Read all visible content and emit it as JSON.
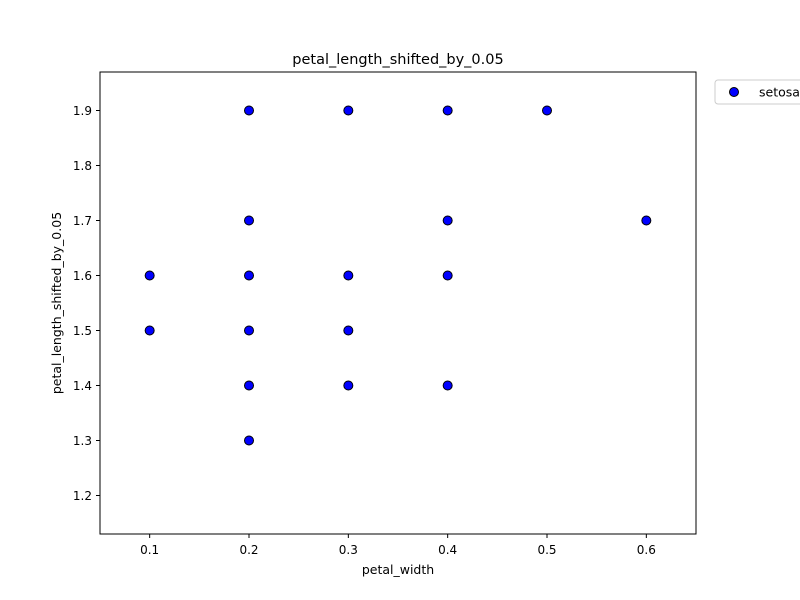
{
  "chart_data": {
    "type": "scatter",
    "title": "petal_length_shifted_by_0.05",
    "xlabel": "petal_width",
    "ylabel": "petal_length_shifted_by_0.05",
    "xlim": [
      0.05,
      0.65
    ],
    "ylim": [
      1.13,
      1.97
    ],
    "xticks": [
      0.1,
      0.2,
      0.3,
      0.4,
      0.5,
      0.6
    ],
    "yticks": [
      1.2,
      1.3,
      1.4,
      1.5,
      1.6,
      1.7,
      1.8,
      1.9
    ],
    "xtick_labels": [
      "0.1",
      "0.2",
      "0.3",
      "0.4",
      "0.5",
      "0.6"
    ],
    "ytick_labels": [
      "1.2",
      "1.3",
      "1.4",
      "1.5",
      "1.6",
      "1.7",
      "1.8",
      "1.9"
    ],
    "grid": false,
    "legend_position": "outside-top-right",
    "series": [
      {
        "name": "setosa",
        "color": "#0000ff",
        "edge_color": "#000000",
        "points": [
          [
            0.1,
            1.5
          ],
          [
            0.1,
            1.6
          ],
          [
            0.2,
            1.3
          ],
          [
            0.2,
            1.4
          ],
          [
            0.2,
            1.5
          ],
          [
            0.2,
            1.6
          ],
          [
            0.2,
            1.7
          ],
          [
            0.2,
            1.9
          ],
          [
            0.3,
            1.4
          ],
          [
            0.3,
            1.5
          ],
          [
            0.3,
            1.6
          ],
          [
            0.3,
            1.9
          ],
          [
            0.4,
            1.4
          ],
          [
            0.4,
            1.6
          ],
          [
            0.4,
            1.7
          ],
          [
            0.4,
            1.9
          ],
          [
            0.5,
            1.9
          ],
          [
            0.6,
            1.7
          ]
        ]
      }
    ]
  }
}
